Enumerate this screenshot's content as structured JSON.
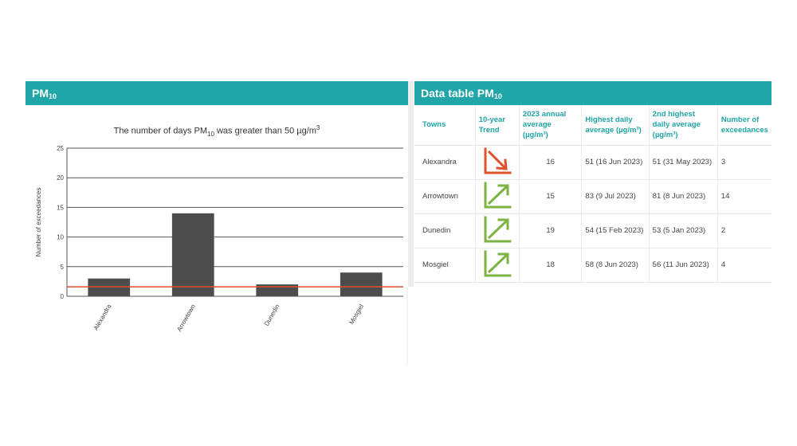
{
  "left_panel": {
    "title": "PM",
    "title_sub": "10"
  },
  "right_panel": {
    "title": "Data table PM",
    "title_sub": "10"
  },
  "chart_data": {
    "type": "bar",
    "title_pre": "The number of days PM",
    "title_sub": "10",
    "title_post": " was greater than 50 µg/m",
    "title_sup": "3",
    "ylabel": "Number of exceedances",
    "xlabel": "",
    "ylim": [
      0,
      25
    ],
    "yticks": [
      0,
      5,
      10,
      15,
      20,
      25
    ],
    "categories": [
      "Alexandra",
      "Arrowtown",
      "Dunedin",
      "Mosgiel"
    ],
    "values": [
      3,
      14,
      2,
      4
    ],
    "reference_line": {
      "value": 1.6,
      "color": "#e0522b"
    },
    "bar_color": "#4d4d4d",
    "grid": true
  },
  "table": {
    "headers": {
      "town": "Towns",
      "trend": "10-year Trend",
      "annual": "2023 annual average (µg/m³)",
      "highest": "Highest daily average (µg/m³)",
      "second": "2nd highest daily average (µg/m³)",
      "exceed": "Number of exceedances"
    },
    "rows": [
      {
        "town": "Alexandra",
        "trend": "down",
        "trend_icon": "arrow-down-right-icon",
        "trend_color": "#e0522b",
        "annual": "16",
        "highest": "51 (16 Jun 2023)",
        "second": "51 (31 May 2023)",
        "exceed": "3"
      },
      {
        "town": "Arrowtown",
        "trend": "up",
        "trend_icon": "arrow-up-right-icon",
        "trend_color": "#7cb342",
        "annual": "15",
        "highest": "83 (9 Jul 2023)",
        "second": "81 (8 Jun 2023)",
        "exceed": "14"
      },
      {
        "town": "Dunedin",
        "trend": "up",
        "trend_icon": "arrow-up-right-icon",
        "trend_color": "#7cb342",
        "annual": "19",
        "highest": "54 (15 Feb 2023)",
        "second": "53 (5 Jan 2023)",
        "exceed": "2"
      },
      {
        "town": "Mosgiel",
        "trend": "up",
        "trend_icon": "arrow-up-right-icon",
        "trend_color": "#7cb342",
        "annual": "18",
        "highest": "58 (8 Jun 2023)",
        "second": "56 (11 Jun 2023)",
        "exceed": "4"
      }
    ]
  }
}
